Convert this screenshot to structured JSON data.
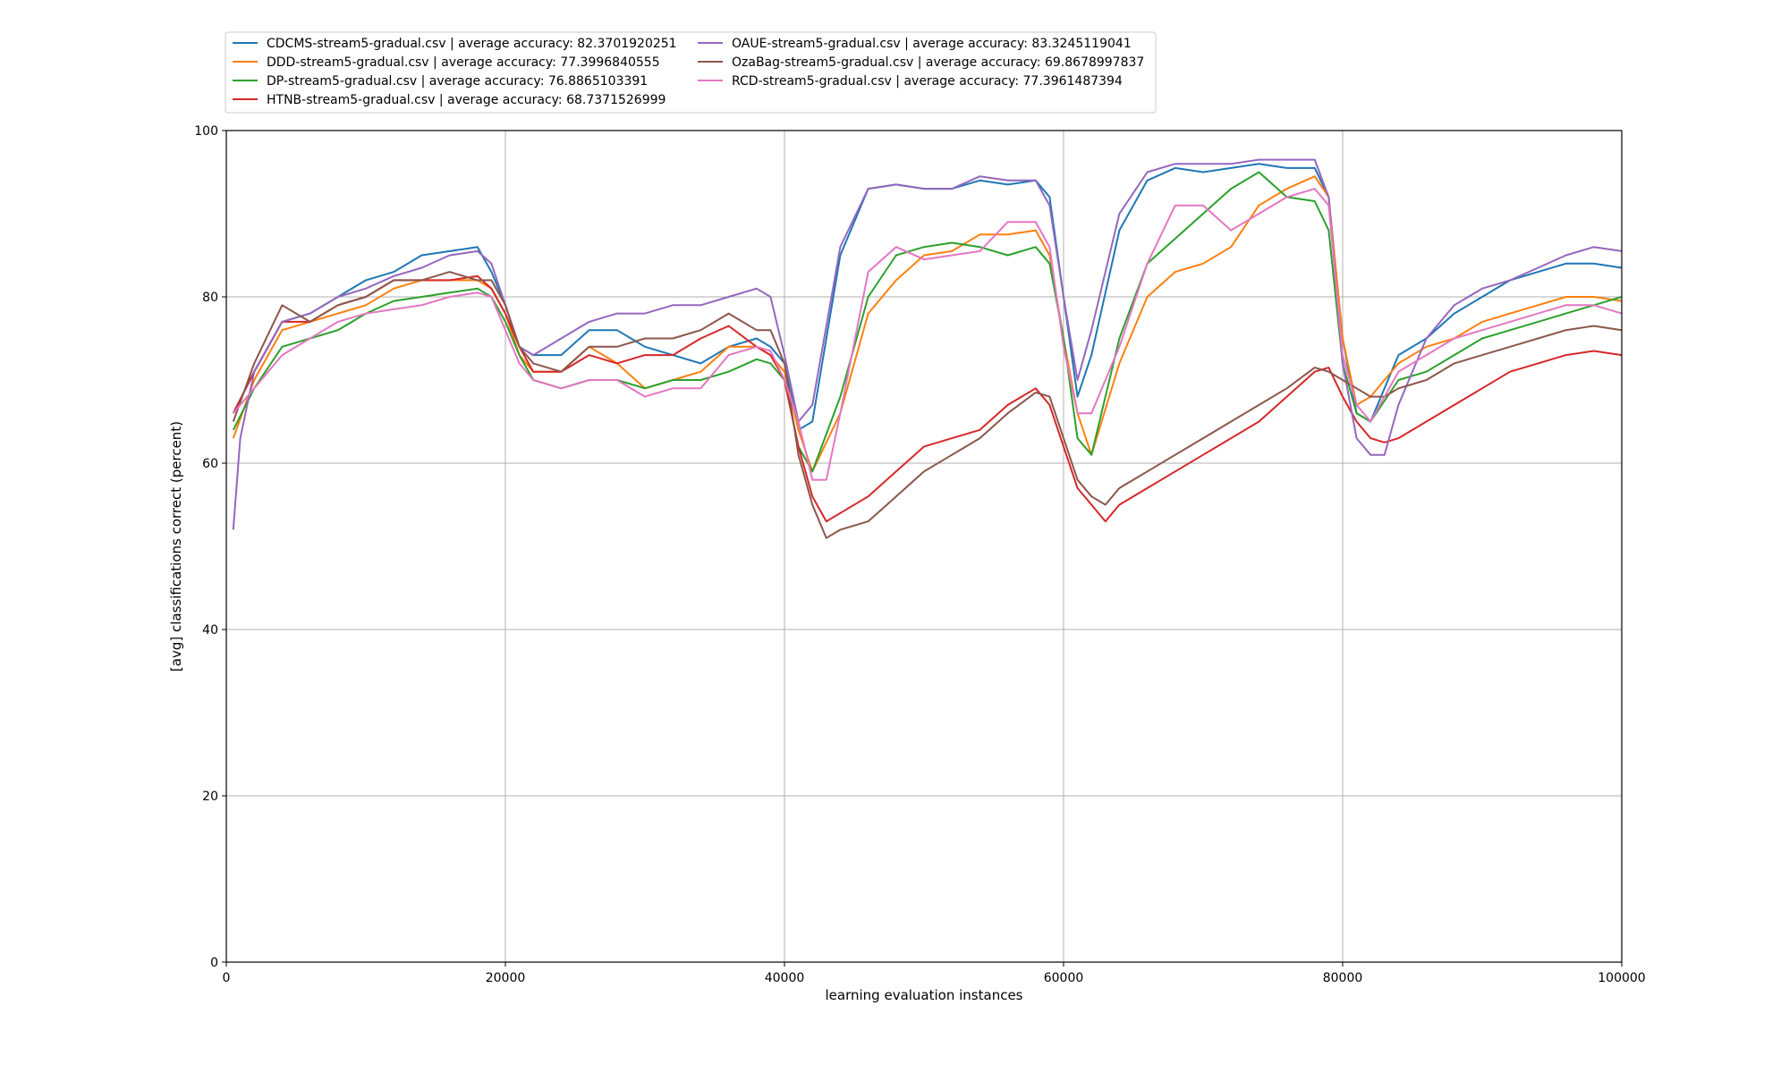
{
  "chart_data": {
    "type": "line",
    "title": "",
    "xlabel": "learning evaluation instances",
    "ylabel": "[avg] classifications correct (percent)",
    "xlim": [
      0,
      100000
    ],
    "ylim": [
      0,
      100
    ],
    "xticks": [
      0,
      20000,
      40000,
      60000,
      80000,
      100000
    ],
    "xtick_labels": [
      "0",
      "20000",
      "40000",
      "60000",
      "80000",
      "100000"
    ],
    "yticks": [
      0,
      20,
      40,
      60,
      80,
      100
    ],
    "ytick_labels": [
      "0",
      "20",
      "40",
      "60",
      "80",
      "100"
    ],
    "grid": true,
    "legend_position": "top-left, above plot",
    "legend_columns": 2,
    "series": [
      {
        "name": "CDCMS-stream5-gradual.csv | average accuracy: 82.3701920251",
        "color": "#1f77b4",
        "x": [
          500,
          2000,
          4000,
          6000,
          8000,
          10000,
          12000,
          14000,
          16000,
          18000,
          19000,
          20000,
          21000,
          22000,
          24000,
          26000,
          28000,
          30000,
          32000,
          34000,
          36000,
          38000,
          39000,
          40000,
          41000,
          42000,
          44000,
          46000,
          48000,
          50000,
          52000,
          54000,
          56000,
          58000,
          59000,
          60000,
          61000,
          62000,
          64000,
          66000,
          68000,
          70000,
          72000,
          74000,
          76000,
          78000,
          79000,
          80000,
          81000,
          82000,
          84000,
          86000,
          88000,
          90000,
          92000,
          94000,
          96000,
          98000,
          100000
        ],
        "values": [
          66,
          71,
          77,
          78,
          80,
          82,
          83,
          85,
          85.5,
          86,
          83,
          79,
          74,
          73,
          73,
          76,
          76,
          74,
          73,
          72,
          74,
          75,
          74,
          72,
          64,
          65,
          85,
          93,
          93.5,
          93,
          93,
          94,
          93.5,
          94,
          92,
          80,
          68,
          73,
          88,
          94,
          95.5,
          95,
          95.5,
          96,
          95.5,
          95.5,
          92,
          75,
          66,
          65,
          73,
          75,
          78,
          80,
          82,
          83,
          84,
          84,
          83.5
        ]
      },
      {
        "name": "DDD-stream5-gradual.csv | average accuracy: 77.3996840555",
        "color": "#ff7f0e",
        "x": [
          500,
          2000,
          4000,
          6000,
          8000,
          10000,
          12000,
          14000,
          16000,
          18000,
          19000,
          20000,
          21000,
          22000,
          24000,
          26000,
          28000,
          30000,
          32000,
          34000,
          36000,
          38000,
          39000,
          40000,
          41000,
          42000,
          44000,
          46000,
          48000,
          50000,
          52000,
          54000,
          56000,
          58000,
          59000,
          60000,
          61000,
          62000,
          64000,
          66000,
          68000,
          70000,
          72000,
          74000,
          76000,
          78000,
          79000,
          80000,
          81000,
          82000,
          84000,
          86000,
          88000,
          90000,
          92000,
          94000,
          96000,
          98000,
          100000
        ],
        "values": [
          63,
          70,
          76,
          77,
          78,
          79,
          81,
          82,
          82,
          82,
          81,
          78,
          73,
          71,
          71,
          74,
          72,
          69,
          70,
          71,
          74,
          74,
          73,
          71,
          64,
          59,
          66,
          78,
          82,
          85,
          85.5,
          87.5,
          87.5,
          88,
          85,
          75,
          66,
          61,
          72,
          80,
          83,
          84,
          86,
          91,
          93,
          94.5,
          92,
          75,
          67,
          68,
          72,
          74,
          75,
          77,
          78,
          79,
          80,
          80,
          79.5
        ]
      },
      {
        "name": "DP-stream5-gradual.csv | average accuracy: 76.8865103391",
        "color": "#2ca02c",
        "x": [
          500,
          2000,
          4000,
          6000,
          8000,
          10000,
          12000,
          14000,
          16000,
          18000,
          19000,
          20000,
          21000,
          22000,
          24000,
          26000,
          28000,
          30000,
          32000,
          34000,
          36000,
          38000,
          39000,
          40000,
          41000,
          42000,
          44000,
          46000,
          48000,
          50000,
          52000,
          54000,
          56000,
          58000,
          59000,
          60000,
          61000,
          62000,
          64000,
          66000,
          68000,
          70000,
          72000,
          74000,
          76000,
          78000,
          79000,
          80000,
          81000,
          82000,
          84000,
          86000,
          88000,
          90000,
          92000,
          94000,
          96000,
          98000,
          100000
        ],
        "values": [
          64,
          69,
          74,
          75,
          76,
          78,
          79.5,
          80,
          80.5,
          81,
          80,
          77,
          73,
          70,
          69,
          70,
          70,
          69,
          70,
          70,
          71,
          72.5,
          72,
          70,
          62,
          59,
          68,
          80,
          85,
          86,
          86.5,
          86,
          85,
          86,
          84,
          75,
          63,
          61,
          75,
          84,
          87,
          90,
          93,
          95,
          92,
          91.5,
          88,
          72,
          66,
          65,
          70,
          71,
          73,
          75,
          76,
          77,
          78,
          79,
          80
        ]
      },
      {
        "name": "HTNB-stream5-gradual.csv | average accuracy: 68.7371526999",
        "color": "#d62728",
        "x": [
          500,
          2000,
          4000,
          6000,
          8000,
          10000,
          12000,
          14000,
          16000,
          18000,
          19000,
          20000,
          21000,
          22000,
          24000,
          26000,
          28000,
          30000,
          32000,
          34000,
          36000,
          38000,
          39000,
          40000,
          41000,
          42000,
          43000,
          44000,
          46000,
          48000,
          50000,
          52000,
          54000,
          56000,
          58000,
          59000,
          60000,
          61000,
          62000,
          63000,
          64000,
          66000,
          68000,
          70000,
          72000,
          74000,
          76000,
          78000,
          79000,
          80000,
          81000,
          82000,
          83000,
          84000,
          86000,
          88000,
          90000,
          92000,
          94000,
          96000,
          98000,
          100000
        ],
        "values": [
          66,
          71,
          77,
          77,
          79,
          80,
          82,
          82,
          82,
          82.5,
          81,
          78,
          74,
          71,
          71,
          73,
          72,
          73,
          73,
          75,
          76.5,
          74,
          73,
          70,
          62,
          56,
          53,
          54,
          56,
          59,
          62,
          63,
          64,
          67,
          69,
          67,
          62,
          57,
          55,
          53,
          55,
          57,
          59,
          61,
          63,
          65,
          68,
          71,
          71.5,
          68,
          65,
          63,
          62.5,
          63,
          65,
          67,
          69,
          71,
          72,
          73,
          73.5,
          73
        ]
      },
      {
        "name": "OAUE-stream5-gradual.csv | average accuracy: 83.3245119041",
        "color": "#9467bd",
        "x": [
          500,
          1000,
          2000,
          4000,
          6000,
          8000,
          10000,
          12000,
          14000,
          16000,
          18000,
          19000,
          20000,
          21000,
          22000,
          24000,
          26000,
          28000,
          30000,
          32000,
          34000,
          36000,
          38000,
          39000,
          40000,
          41000,
          42000,
          44000,
          46000,
          48000,
          50000,
          52000,
          54000,
          56000,
          58000,
          59000,
          60000,
          61000,
          62000,
          64000,
          66000,
          68000,
          70000,
          72000,
          74000,
          76000,
          78000,
          79000,
          80000,
          81000,
          82000,
          83000,
          84000,
          86000,
          88000,
          90000,
          92000,
          94000,
          96000,
          98000,
          100000
        ],
        "values": [
          52,
          63,
          71,
          77,
          78,
          80,
          81,
          82.5,
          83.5,
          85,
          85.5,
          84,
          79,
          74,
          73,
          75,
          77,
          78,
          78,
          79,
          79,
          80,
          81,
          80,
          73,
          65,
          67,
          86,
          93,
          93.5,
          93,
          93,
          94.5,
          94,
          94,
          91,
          80,
          70,
          76,
          90,
          95,
          96,
          96,
          96,
          96.5,
          96.5,
          96.5,
          92,
          72,
          63,
          61,
          61,
          67,
          75,
          79,
          81,
          82,
          83.5,
          85,
          86,
          85.5
        ]
      },
      {
        "name": "OzaBag-stream5-gradual.csv | average accuracy: 69.8678997837",
        "color": "#8c564b",
        "x": [
          500,
          2000,
          4000,
          6000,
          8000,
          10000,
          12000,
          14000,
          16000,
          18000,
          19000,
          20000,
          21000,
          22000,
          24000,
          26000,
          28000,
          30000,
          32000,
          34000,
          36000,
          38000,
          39000,
          40000,
          41000,
          42000,
          43000,
          44000,
          46000,
          48000,
          50000,
          52000,
          54000,
          56000,
          58000,
          59000,
          60000,
          61000,
          62000,
          63000,
          64000,
          66000,
          68000,
          70000,
          72000,
          74000,
          76000,
          78000,
          79000,
          80000,
          81000,
          82000,
          83000,
          84000,
          86000,
          88000,
          90000,
          92000,
          94000,
          96000,
          98000,
          100000
        ],
        "values": [
          65,
          72,
          79,
          77,
          79,
          80,
          82,
          82,
          83,
          82,
          82,
          79,
          74,
          72,
          71,
          74,
          74,
          75,
          75,
          76,
          78,
          76,
          76,
          72,
          61,
          55,
          51,
          52,
          53,
          56,
          59,
          61,
          63,
          66,
          68.5,
          68,
          63,
          58,
          56,
          55,
          57,
          59,
          61,
          63,
          65,
          67,
          69,
          71.5,
          71,
          70,
          69,
          68,
          68,
          69,
          70,
          72,
          73,
          74,
          75,
          76,
          76.5,
          76
        ]
      },
      {
        "name": "RCD-stream5-gradual.csv | average accuracy: 77.3961487394",
        "color": "#e377c2",
        "x": [
          500,
          2000,
          4000,
          6000,
          8000,
          10000,
          12000,
          14000,
          16000,
          18000,
          19000,
          20000,
          21000,
          22000,
          24000,
          26000,
          28000,
          30000,
          32000,
          34000,
          36000,
          38000,
          39000,
          40000,
          41000,
          42000,
          43000,
          44000,
          46000,
          48000,
          50000,
          52000,
          54000,
          56000,
          58000,
          59000,
          60000,
          61000,
          62000,
          64000,
          66000,
          68000,
          70000,
          72000,
          74000,
          76000,
          78000,
          79000,
          80000,
          81000,
          82000,
          84000,
          86000,
          88000,
          90000,
          92000,
          94000,
          96000,
          98000,
          100000
        ],
        "values": [
          66,
          69,
          73,
          75,
          77,
          78,
          78.5,
          79,
          80,
          80.5,
          80,
          76,
          72,
          70,
          69,
          70,
          70,
          68,
          69,
          69,
          73,
          74,
          73.5,
          70,
          65,
          58,
          58,
          66,
          83,
          86,
          84.5,
          85,
          85.5,
          89,
          89,
          86,
          74,
          66,
          66,
          74,
          84,
          91,
          91,
          88,
          90,
          92,
          93,
          91,
          73,
          67,
          65,
          71,
          73,
          75,
          76,
          77,
          78,
          79,
          79,
          78
        ]
      }
    ]
  }
}
